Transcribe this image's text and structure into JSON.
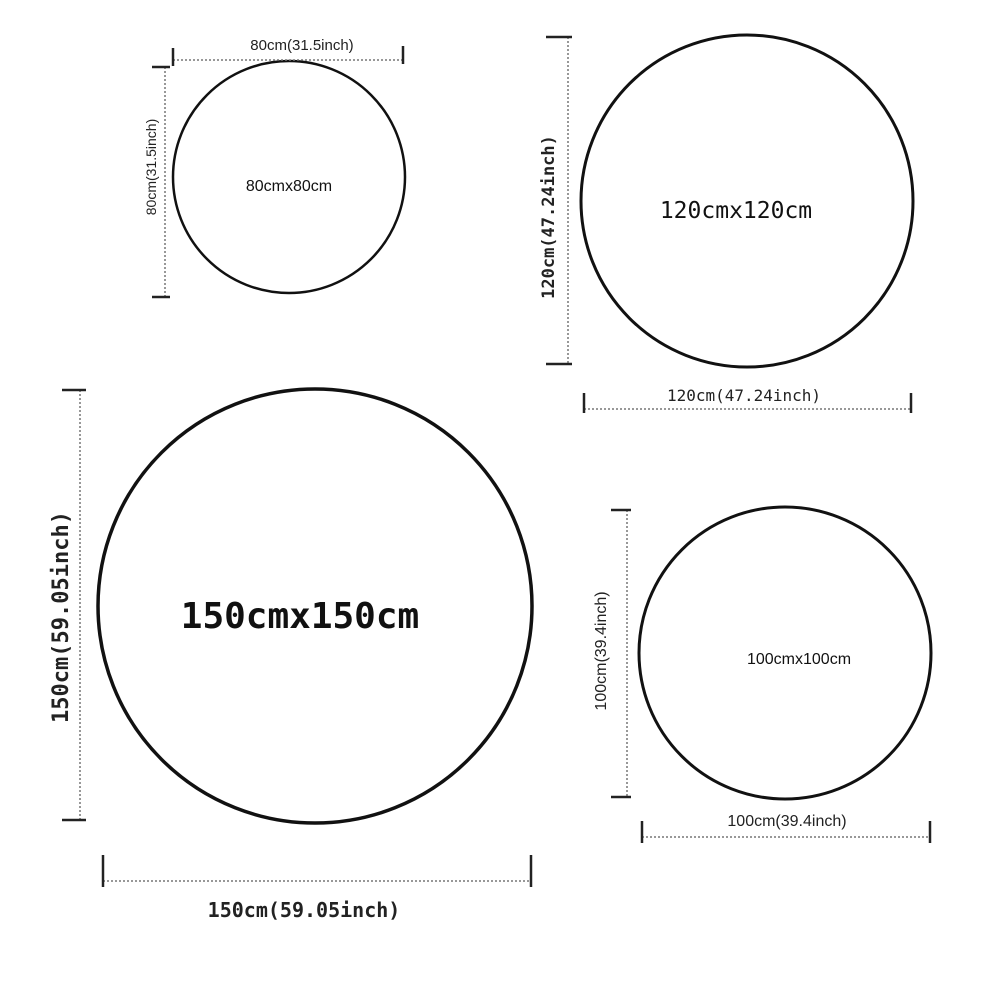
{
  "circles": [
    {
      "size": "80cmx80cm",
      "width_label": "80cm(31.5inch)",
      "height_label": "80cm(31.5inch)"
    },
    {
      "size": "120cmx120cm",
      "width_label": "120cm(47.24inch)",
      "height_label": "120cm(47.24inch)"
    },
    {
      "size": "150cmx150cm",
      "width_label": "150cm(59.05inch)",
      "height_label": "150cm(59.05inch)"
    },
    {
      "size": "100cmx100cm",
      "width_label": "100cm(39.4inch)",
      "height_label": "100cm(39.4inch)"
    }
  ],
  "colors": {
    "outline": "#111111",
    "dimension_line": "#777777"
  }
}
